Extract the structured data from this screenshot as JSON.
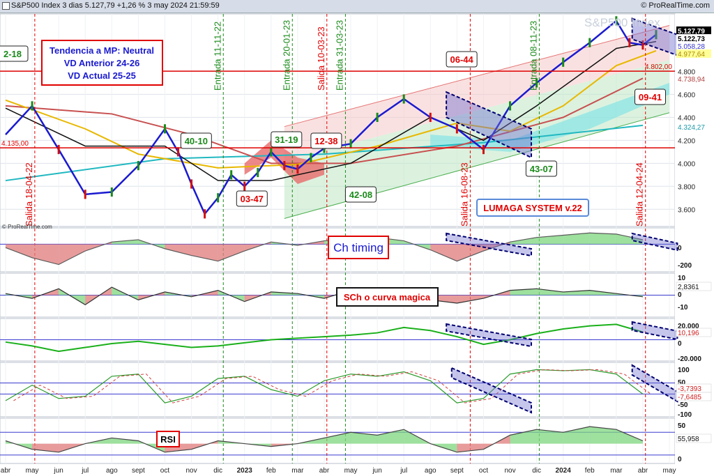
{
  "header": {
    "title": "S&P500 Index 3 dias 5.127,79 +1,26 % 3 may 2024 21:59:59",
    "brand": "© ProRealTime.com",
    "watermark": "S&P500 Index",
    "chart_brand": "© ProRealTime.com"
  },
  "boxes": {
    "tendencia": [
      "Tendencia a MP: Neutral",
      "VD Anterior 24-26",
      "VD Actual 25-25"
    ],
    "lumaga": "LUMAGA SYSTEM v.22",
    "ch_timing": "Ch timing",
    "sch": "SCh o curva magica",
    "rsi": "RSI"
  },
  "colors": {
    "green": "#1a8a1a",
    "red": "#e00000",
    "blue_line": "#1a1ad0",
    "teal_line": "#20b8c0",
    "price_up": "#1a8a1a",
    "price_down": "#d01010",
    "header_bg": "#d6dde8"
  },
  "chart_data": [
    {
      "type": "line",
      "name": "price",
      "title": "S&P500 Index 3 dias",
      "x_ticks": [
        "abr",
        "may",
        "jun",
        "jul",
        "ago",
        "sept",
        "oct",
        "nov",
        "dic",
        "2023",
        "feb",
        "mar",
        "abr",
        "may",
        "jun",
        "jul",
        "ago",
        "sept",
        "oct",
        "nov",
        "dic",
        "2024",
        "feb",
        "mar",
        "abr",
        "may"
      ],
      "y_ticks": [
        "3.600",
        "3.800",
        "4.000",
        "4.200",
        "4.400",
        "4.600",
        "4.800"
      ],
      "ylim": [
        3450,
        5300
      ],
      "price_path": [
        [
          0,
          4250
        ],
        [
          1,
          4500
        ],
        [
          2,
          4120
        ],
        [
          3,
          3730
        ],
        [
          4,
          3750
        ],
        [
          5,
          3980
        ],
        [
          6,
          4300
        ],
        [
          6.5,
          4100
        ],
        [
          7,
          3820
        ],
        [
          7.5,
          3560
        ],
        [
          8,
          3700
        ],
        [
          8.5,
          3900
        ],
        [
          9,
          3800
        ],
        [
          9.5,
          3920
        ],
        [
          10,
          4100
        ],
        [
          10.5,
          3980
        ],
        [
          11,
          3950
        ],
        [
          11.5,
          4050
        ],
        [
          12,
          4130
        ],
        [
          13,
          4170
        ],
        [
          14,
          4400
        ],
        [
          15,
          4560
        ],
        [
          16,
          4400
        ],
        [
          17,
          4300
        ],
        [
          18,
          4120
        ],
        [
          19,
          4500
        ],
        [
          20,
          4700
        ],
        [
          21,
          4880
        ],
        [
          22,
          5050
        ],
        [
          23,
          5240
        ],
        [
          23.5,
          5050
        ],
        [
          24,
          5030
        ],
        [
          24.5,
          5120
        ]
      ],
      "labels": [
        {
          "text": "2-18",
          "c": "green",
          "bg": "white"
        },
        {
          "text": "40-10",
          "c": "green",
          "bg": "white"
        },
        {
          "text": "31-19",
          "c": "green",
          "bg": "white"
        },
        {
          "text": "12-38",
          "c": "red",
          "bg": "white"
        },
        {
          "text": "03-47",
          "c": "red",
          "bg": "white"
        },
        {
          "text": "42-08",
          "c": "green",
          "bg": "white"
        },
        {
          "text": "06-44",
          "c": "red",
          "bg": "white"
        },
        {
          "text": "43-07",
          "c": "green",
          "bg": "white"
        },
        {
          "text": "09-41",
          "c": "red",
          "bg": "white"
        }
      ],
      "vlines": [
        {
          "text": "Salida 18-04-22",
          "c": "red",
          "x": 1.1
        },
        {
          "text": "Entrada 11-11-22",
          "c": "green",
          "x": 8.2
        },
        {
          "text": "Entrada 20-01-23",
          "c": "green",
          "x": 10.8
        },
        {
          "text": "Salida 10-03-23",
          "c": "red",
          "x": 12.1
        },
        {
          "text": "Entrada 31-03-23",
          "c": "green",
          "x": 12.8
        },
        {
          "text": "Salida 16-08-23",
          "c": "red",
          "x": 17.5
        },
        {
          "text": "Entrada 08-11-23",
          "c": "green",
          "x": 20.1
        },
        {
          "text": "Salida 12-04-24",
          "c": "red",
          "x": 24.1
        }
      ],
      "hlines": [
        {
          "value": 4802,
          "label": "4.802,00",
          "c": "red"
        },
        {
          "value": 4135,
          "label": "4.135,00",
          "c": "red"
        }
      ],
      "price_labels": [
        {
          "text": "5.127,79",
          "bg": "#000000",
          "fg": "#ffffff"
        },
        {
          "text": "5.122,73",
          "bg": "#ffffff",
          "fg": "#000000"
        },
        {
          "text": "5.058,28",
          "bg": "#ffffff",
          "fg": "#3333cc"
        },
        {
          "text": "4.977,64",
          "bg": "#ffff99",
          "fg": "#aa8800"
        },
        {
          "text": "4.738,94",
          "bg": "#ffffff",
          "fg": "#b04040"
        },
        {
          "text": "4.324,27",
          "bg": "#ffffff",
          "fg": "#1a9aa8"
        }
      ]
    },
    {
      "type": "area",
      "name": "ch_timing",
      "y_ticks": [
        "0",
        "-200"
      ],
      "values": [
        -30,
        -120,
        -180,
        -60,
        20,
        40,
        -40,
        -100,
        -150,
        -60,
        20,
        -10,
        30,
        50,
        60,
        30,
        -50,
        -150,
        -60,
        20,
        60,
        80,
        100,
        90,
        40
      ]
    },
    {
      "type": "area",
      "name": "sch",
      "y_ticks": [
        "10",
        "0",
        "-10"
      ],
      "price_labels": [
        "2,8361"
      ],
      "values": [
        1,
        -2,
        4,
        -6,
        5,
        -3,
        2,
        -1,
        3,
        -4,
        2,
        1,
        -2,
        3,
        1,
        4,
        -3,
        -5,
        -2,
        3,
        4,
        2,
        3,
        1,
        -1
      ]
    },
    {
      "type": "line",
      "name": "osc3",
      "y_ticks": [
        "20.000",
        "0",
        "-20.000"
      ],
      "price_labels": [
        "10,196"
      ],
      "values": [
        -3000,
        -8000,
        -15000,
        -10000,
        -5000,
        -2000,
        -6000,
        -10000,
        -8000,
        -4000,
        0,
        2000,
        4000,
        6000,
        9000,
        16000,
        12000,
        4000,
        -6000,
        0,
        8000,
        14000,
        18000,
        20000,
        10000
      ]
    },
    {
      "type": "line",
      "name": "osc4",
      "y_ticks": [
        "100",
        "50",
        "0",
        "-50",
        "-100"
      ],
      "price_labels": [
        "-3,7393",
        "-7,6485"
      ],
      "values": [
        -50,
        20,
        -40,
        -30,
        60,
        70,
        -60,
        -30,
        50,
        60,
        0,
        -30,
        40,
        70,
        60,
        80,
        40,
        -60,
        -40,
        70,
        90,
        85,
        90,
        70,
        -20
      ]
    },
    {
      "type": "line",
      "name": "rsi",
      "y_ticks": [
        "50",
        "0"
      ],
      "price_labels": [
        "55,958"
      ],
      "values": [
        55,
        40,
        35,
        50,
        60,
        55,
        35,
        40,
        55,
        50,
        45,
        50,
        60,
        70,
        65,
        75,
        50,
        35,
        40,
        65,
        75,
        70,
        80,
        75,
        55
      ]
    }
  ]
}
